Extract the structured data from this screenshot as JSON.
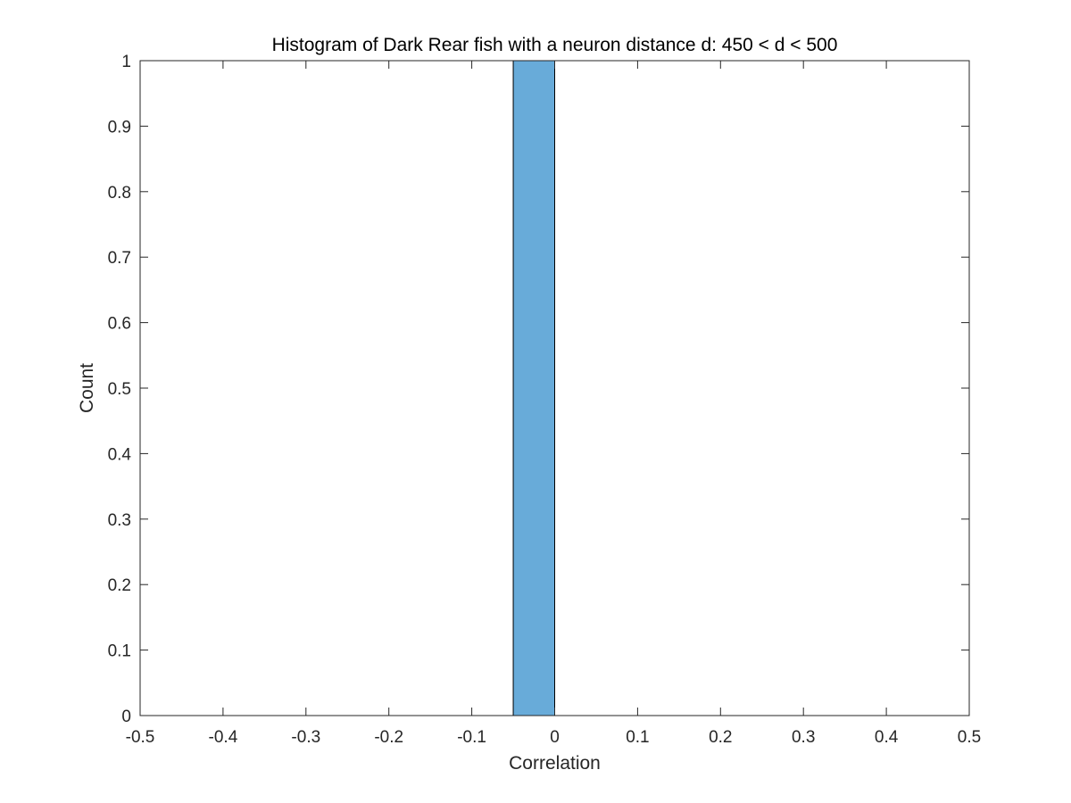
{
  "chart_data": {
    "type": "bar",
    "title": "Histogram of Dark Rear fish with a neuron distance d: 450 < d < 500",
    "xlabel": "Correlation",
    "ylabel": "Count",
    "xlim": [
      -0.5,
      0.5
    ],
    "ylim": [
      0,
      1
    ],
    "grid": false,
    "legend": "none",
    "bar_color": "#68abd9",
    "bar_edge_color": "#000000",
    "bins": [
      {
        "x_start": -0.05,
        "x_end": 0.0,
        "count": 1
      }
    ],
    "x_ticks": [
      {
        "value": -0.5,
        "label": "-0.5"
      },
      {
        "value": -0.4,
        "label": "-0.4"
      },
      {
        "value": -0.3,
        "label": "-0.3"
      },
      {
        "value": -0.2,
        "label": "-0.2"
      },
      {
        "value": -0.1,
        "label": "-0.1"
      },
      {
        "value": 0,
        "label": "0"
      },
      {
        "value": 0.1,
        "label": "0.1"
      },
      {
        "value": 0.2,
        "label": "0.2"
      },
      {
        "value": 0.3,
        "label": "0.3"
      },
      {
        "value": 0.4,
        "label": "0.4"
      },
      {
        "value": 0.5,
        "label": "0.5"
      }
    ],
    "y_ticks": [
      {
        "value": 0,
        "label": "0"
      },
      {
        "value": 0.1,
        "label": "0.1"
      },
      {
        "value": 0.2,
        "label": "0.2"
      },
      {
        "value": 0.3,
        "label": "0.3"
      },
      {
        "value": 0.4,
        "label": "0.4"
      },
      {
        "value": 0.5,
        "label": "0.5"
      },
      {
        "value": 0.6,
        "label": "0.6"
      },
      {
        "value": 0.7,
        "label": "0.7"
      },
      {
        "value": 0.8,
        "label": "0.8"
      },
      {
        "value": 0.9,
        "label": "0.9"
      },
      {
        "value": 1,
        "label": "1"
      }
    ]
  }
}
